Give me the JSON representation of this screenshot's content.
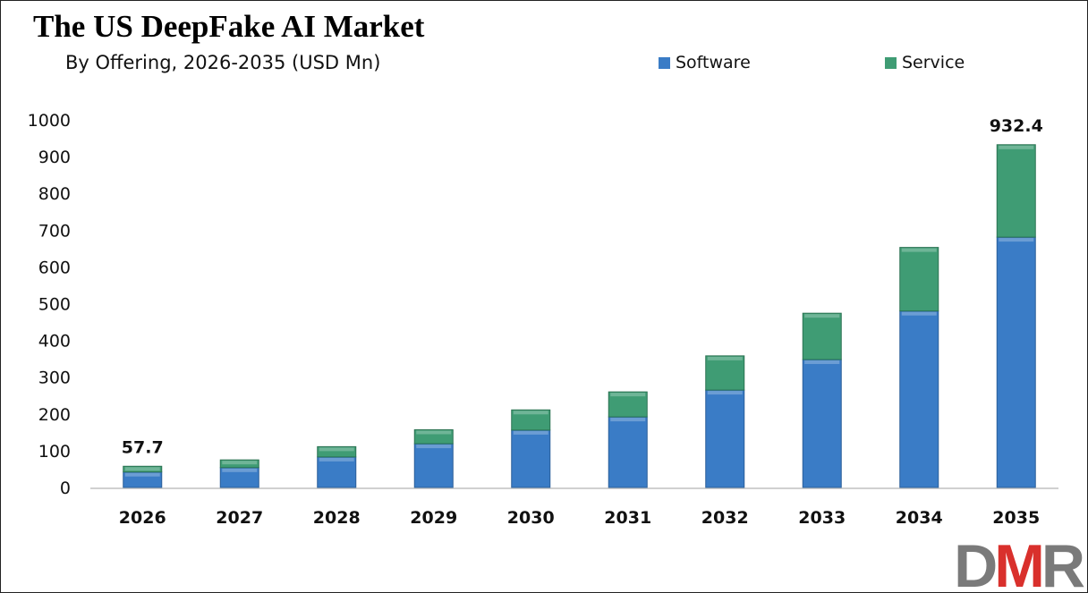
{
  "chart_data": {
    "type": "bar",
    "stacked": true,
    "title": "The US DeepFake AI Market",
    "subtitle": "By Offering, 2026-2035 (USD Mn)",
    "categories": [
      "2026",
      "2027",
      "2028",
      "2029",
      "2030",
      "2031",
      "2032",
      "2033",
      "2034",
      "2035"
    ],
    "series": [
      {
        "name": "Software",
        "color": "#3a7cc6",
        "values": [
          42,
          54,
          83,
          119,
          156,
          192,
          265,
          348,
          480,
          681
        ]
      },
      {
        "name": "Service",
        "color": "#3f9c74",
        "values": [
          15.7,
          21,
          28,
          38,
          55,
          68,
          93,
          126,
          173,
          251.4
        ]
      }
    ],
    "data_labels": [
      {
        "category": "2026",
        "text": "57.7"
      },
      {
        "category": "2035",
        "text": "932.4"
      }
    ],
    "ylim": [
      0,
      1000
    ],
    "yticks": [
      "0",
      "100",
      "200",
      "300",
      "400",
      "500",
      "600",
      "700",
      "800",
      "900",
      "1000"
    ],
    "grid": false,
    "legend_position": "top"
  },
  "logo": {
    "text_parts": [
      "D",
      "M",
      "R"
    ],
    "colors": [
      "#7a7a7a",
      "#d9302c",
      "#7a7a7a"
    ]
  }
}
